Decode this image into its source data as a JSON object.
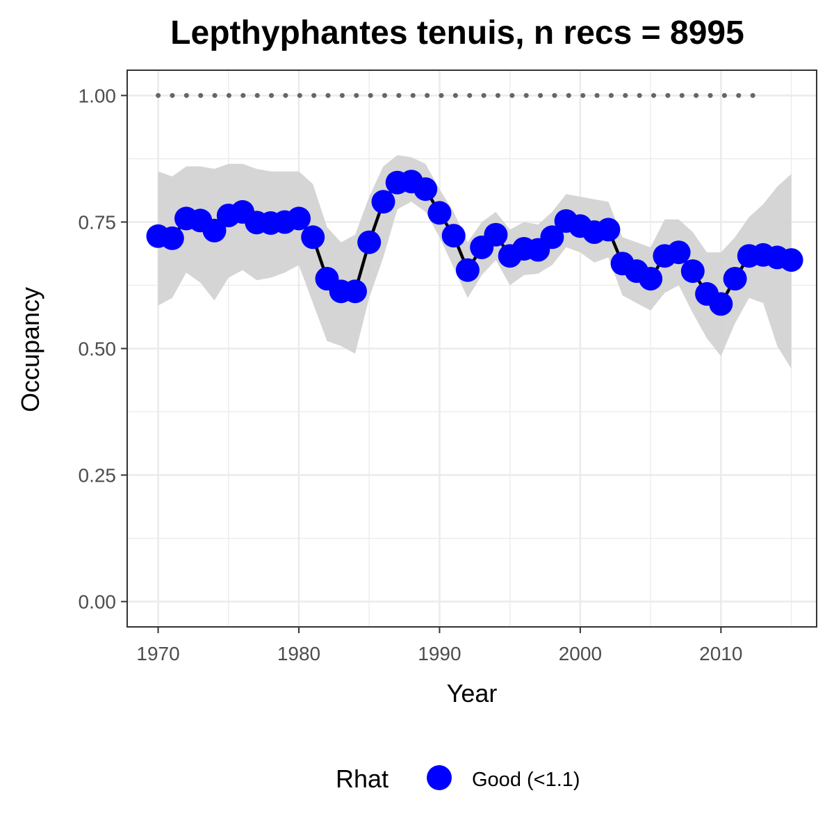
{
  "chart_data": {
    "type": "line",
    "title": "Lepthyphantes tenuis, n recs = 8995",
    "xlabel": "Year",
    "ylabel": "Occupancy",
    "xlim": [
      1967.8,
      2016.8
    ],
    "ylim": [
      -0.05,
      1.05
    ],
    "x_ticks": [
      1970,
      1980,
      1990,
      2000,
      2010
    ],
    "x_tick_labels": [
      "1970",
      "1980",
      "1990",
      "2000",
      "2010"
    ],
    "y_ticks": [
      0,
      0.25,
      0.5,
      0.75,
      1
    ],
    "y_tick_labels": [
      "0.00",
      "0.25",
      "0.50",
      "0.75",
      "1.00"
    ],
    "grid": true,
    "x": [
      1970,
      1971,
      1972,
      1973,
      1974,
      1975,
      1976,
      1977,
      1978,
      1979,
      1980,
      1981,
      1982,
      1983,
      1984,
      1985,
      1986,
      1987,
      1988,
      1989,
      1990,
      1991,
      1992,
      1993,
      1994,
      1995,
      1996,
      1997,
      1998,
      1999,
      2000,
      2001,
      2002,
      2003,
      2004,
      2005,
      2006,
      2007,
      2008,
      2009,
      2010,
      2011,
      2012,
      2013,
      2014,
      2015
    ],
    "series": [
      {
        "values": [
          0.722,
          0.718,
          0.757,
          0.753,
          0.733,
          0.763,
          0.77,
          0.749,
          0.748,
          0.75,
          0.757,
          0.72,
          0.638,
          0.613,
          0.613,
          0.71,
          0.79,
          0.828,
          0.83,
          0.815,
          0.768,
          0.723,
          0.655,
          0.7,
          0.725,
          0.683,
          0.697,
          0.695,
          0.72,
          0.752,
          0.742,
          0.73,
          0.735,
          0.668,
          0.653,
          0.638,
          0.683,
          0.69,
          0.653,
          0.608,
          0.588,
          0.638,
          0.683,
          0.685,
          0.68,
          0.675
        ],
        "lower": [
          0.585,
          0.6,
          0.65,
          0.63,
          0.595,
          0.64,
          0.655,
          0.635,
          0.64,
          0.65,
          0.665,
          0.59,
          0.515,
          0.505,
          0.49,
          0.6,
          0.68,
          0.775,
          0.79,
          0.77,
          0.72,
          0.66,
          0.6,
          0.645,
          0.675,
          0.625,
          0.645,
          0.648,
          0.665,
          0.7,
          0.69,
          0.67,
          0.68,
          0.605,
          0.59,
          0.575,
          0.61,
          0.625,
          0.57,
          0.52,
          0.485,
          0.55,
          0.6,
          0.59,
          0.505,
          0.46
        ],
        "upper": [
          0.85,
          0.84,
          0.86,
          0.86,
          0.855,
          0.865,
          0.865,
          0.855,
          0.85,
          0.85,
          0.85,
          0.825,
          0.74,
          0.71,
          0.725,
          0.8,
          0.86,
          0.882,
          0.878,
          0.865,
          0.815,
          0.77,
          0.71,
          0.75,
          0.77,
          0.735,
          0.75,
          0.745,
          0.77,
          0.805,
          0.8,
          0.795,
          0.79,
          0.72,
          0.71,
          0.7,
          0.755,
          0.755,
          0.73,
          0.69,
          0.69,
          0.72,
          0.76,
          0.785,
          0.82,
          0.845
        ],
        "color": "#0000ff"
      }
    ],
    "reference_line": {
      "y": 1.0,
      "x_start": 1970,
      "x_end": 2013,
      "color": "#666666"
    },
    "legend": {
      "title": "Rhat",
      "items": [
        {
          "label": "Good (<1.1)",
          "color": "#0000ff"
        }
      ],
      "position": "bottom"
    },
    "colors": {
      "point": "#0000ff",
      "line": "#000000",
      "ribbon": "#d3d3d3",
      "grid": "#ebebeb",
      "panel_border": "#333333"
    }
  }
}
